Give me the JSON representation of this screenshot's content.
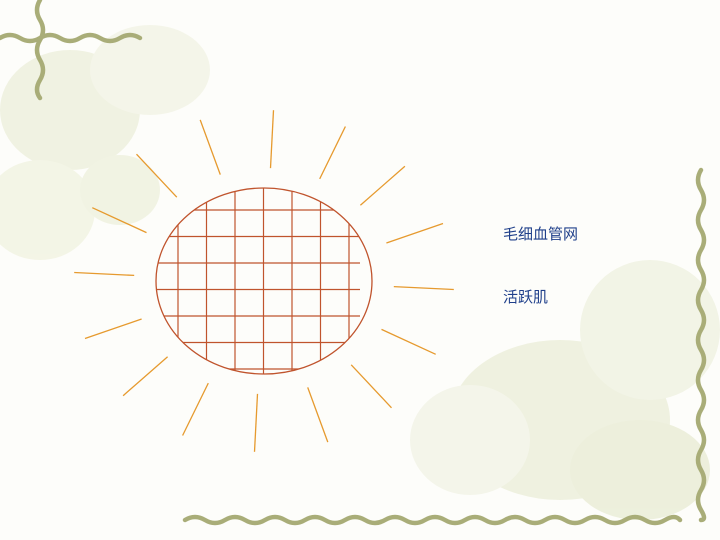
{
  "labels": {
    "capillary_network": "毛细血管网",
    "active_muscle": "活跃肌"
  },
  "colors": {
    "background": "#fdfdfa",
    "frame_vine": "#a9ad78",
    "flower_wash": "#e3e6cc",
    "muscle_outline": "#c0542d",
    "capillary_grid": "#c0542d",
    "rays": "#e69a2e",
    "label_text": "#1f3f8a"
  },
  "diagram": {
    "grid_columns": 7,
    "grid_rows": 7,
    "ray_count": 16
  }
}
